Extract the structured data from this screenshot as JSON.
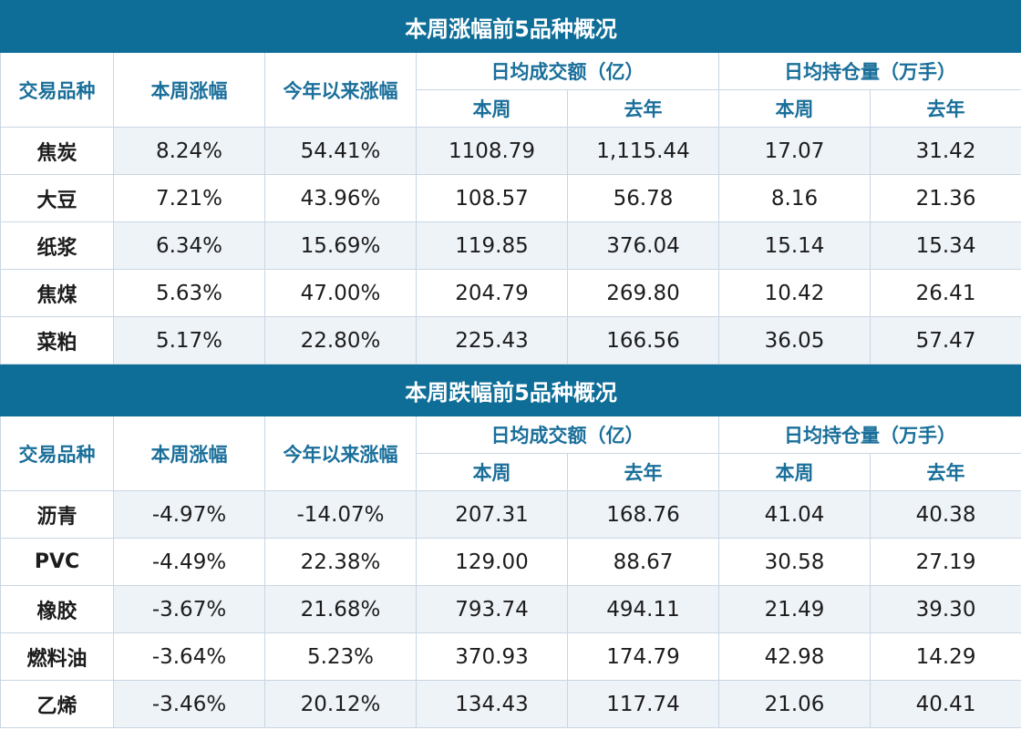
{
  "columns": {
    "name": "交易品种",
    "week_change": "本周涨幅",
    "ytd_change": "今年以来涨幅",
    "avg_turnover": "日均成交额（亿）",
    "avg_open_interest": "日均持仓量（万手）",
    "this_week": "本周",
    "last_year": "去年"
  },
  "gainers": {
    "title": "本周涨幅前5品种概况",
    "rows": [
      {
        "name": "焦炭",
        "week": "8.24%",
        "ytd": "54.41%",
        "turnover_week": "1108.79",
        "turnover_lastyear": "1,115.44",
        "oi_week": "17.07",
        "oi_lastyear": "31.42"
      },
      {
        "name": "大豆",
        "week": "7.21%",
        "ytd": "43.96%",
        "turnover_week": "108.57",
        "turnover_lastyear": "56.78",
        "oi_week": "8.16",
        "oi_lastyear": "21.36"
      },
      {
        "name": "纸浆",
        "week": "6.34%",
        "ytd": "15.69%",
        "turnover_week": "119.85",
        "turnover_lastyear": "376.04",
        "oi_week": "15.14",
        "oi_lastyear": "15.34"
      },
      {
        "name": "焦煤",
        "week": "5.63%",
        "ytd": "47.00%",
        "turnover_week": "204.79",
        "turnover_lastyear": "269.80",
        "oi_week": "10.42",
        "oi_lastyear": "26.41"
      },
      {
        "name": "菜粕",
        "week": "5.17%",
        "ytd": "22.80%",
        "turnover_week": "225.43",
        "turnover_lastyear": "166.56",
        "oi_week": "36.05",
        "oi_lastyear": "57.47"
      }
    ]
  },
  "losers": {
    "title": "本周跌幅前5品种概况",
    "rows": [
      {
        "name": "沥青",
        "week": "-4.97%",
        "ytd": "-14.07%",
        "turnover_week": "207.31",
        "turnover_lastyear": "168.76",
        "oi_week": "41.04",
        "oi_lastyear": "40.38"
      },
      {
        "name": "PVC",
        "week": "-4.49%",
        "ytd": "22.38%",
        "turnover_week": "129.00",
        "turnover_lastyear": "88.67",
        "oi_week": "30.58",
        "oi_lastyear": "27.19"
      },
      {
        "name": "橡胶",
        "week": "-3.67%",
        "ytd": "21.68%",
        "turnover_week": "793.74",
        "turnover_lastyear": "494.11",
        "oi_week": "21.49",
        "oi_lastyear": "39.30"
      },
      {
        "name": "燃料油",
        "week": "-3.64%",
        "ytd": "5.23%",
        "turnover_week": "370.93",
        "turnover_lastyear": "174.79",
        "oi_week": "42.98",
        "oi_lastyear": "14.29"
      },
      {
        "name": "乙烯",
        "week": "-3.46%",
        "ytd": "20.12%",
        "turnover_week": "134.43",
        "turnover_lastyear": "117.74",
        "oi_week": "21.06",
        "oi_lastyear": "40.41"
      }
    ]
  },
  "colors": {
    "title_bg": "#0f6e98",
    "header_text": "#1a6f9a",
    "shade_bg": "#eef3f8",
    "border": "#c9d6e3"
  }
}
